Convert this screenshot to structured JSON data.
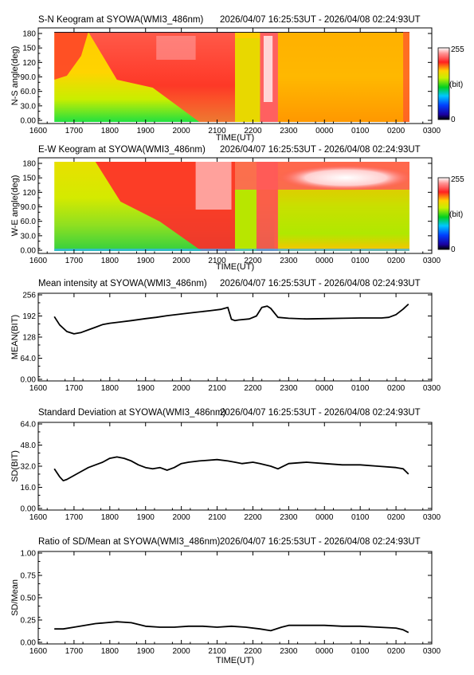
{
  "chart_data": [
    {
      "type": "heatmap",
      "title": "S-N Keogram at SYOWA(WMI3_486nm)",
      "time_range": "2026/04/07 16:25:53UT - 2026/04/08 02:24:93UT",
      "xlabel": "TIME(UT)",
      "ylabel": "N-S angle(deg)",
      "x_ticks": [
        "1600",
        "1700",
        "1800",
        "1900",
        "2000",
        "2100",
        "2200",
        "2300",
        "0000",
        "0100",
        "0200",
        "0300"
      ],
      "y_ticks": [
        "0.00",
        "30.0",
        "60.0",
        "90.0",
        "120",
        "150",
        "180"
      ],
      "ylim": [
        0,
        180
      ],
      "colorbar": {
        "max_label": "255",
        "unit_label": "(bit)",
        "min_label": "0"
      }
    },
    {
      "type": "heatmap",
      "title": "E-W Keogram at SYOWA(WMI3_486nm)",
      "time_range": "2026/04/07 16:25:53UT - 2026/04/08 02:24:93UT",
      "xlabel": "TIME(UT)",
      "ylabel": "W-E angle(deg)",
      "x_ticks": [
        "1600",
        "1700",
        "1800",
        "1900",
        "2000",
        "2100",
        "2200",
        "2300",
        "0000",
        "0100",
        "0200",
        "0300"
      ],
      "y_ticks": [
        "0.00",
        "30.0",
        "60.0",
        "90.0",
        "120",
        "150",
        "180"
      ],
      "ylim": [
        0,
        180
      ],
      "colorbar": {
        "max_label": "255",
        "unit_label": "(bit)",
        "min_label": "0"
      }
    },
    {
      "type": "line",
      "title": "Mean intensity at SYOWA(WMI3_486nm)",
      "time_range": "2026/04/07 16:25:53UT - 2026/04/08 02:24:93UT",
      "xlabel": "",
      "ylabel": "MEAN(BIT)",
      "x_ticks": [
        "1600",
        "1700",
        "1800",
        "1900",
        "2000",
        "2100",
        "2200",
        "2300",
        "0000",
        "0100",
        "0200",
        "0300"
      ],
      "y_ticks": [
        "0.00",
        "64.0",
        "128",
        "192",
        "256"
      ],
      "ylim": [
        0,
        256
      ],
      "x_hours": [
        16.45,
        16.6,
        16.8,
        17.0,
        17.2,
        17.4,
        17.6,
        17.8,
        18.0,
        18.3,
        18.6,
        19.0,
        19.3,
        19.6,
        20.0,
        20.4,
        20.8,
        21.1,
        21.3,
        21.4,
        21.5,
        21.6,
        21.9,
        22.1,
        22.25,
        22.4,
        22.5,
        22.7,
        23.0,
        23.5,
        24.0,
        24.5,
        25.0,
        25.3,
        25.6,
        25.8,
        26.0,
        26.2,
        26.35
      ],
      "values": [
        190,
        165,
        145,
        138,
        142,
        150,
        158,
        166,
        170,
        174,
        178,
        184,
        188,
        193,
        198,
        203,
        208,
        212,
        218,
        182,
        178,
        180,
        183,
        192,
        218,
        222,
        215,
        188,
        185,
        183,
        184,
        185,
        186,
        186,
        186,
        188,
        196,
        213,
        228
      ]
    },
    {
      "type": "line",
      "title": "Standard Deviation at SYOWA(WMI3_486nm)",
      "time_range": "2026/04/07 16:25:53UT - 2026/04/08 02:24:93UT",
      "xlabel": "",
      "ylabel": "SD(BIT)",
      "x_ticks": [
        "1600",
        "1700",
        "1800",
        "1900",
        "2000",
        "2100",
        "2200",
        "2300",
        "0000",
        "0100",
        "0200",
        "0300"
      ],
      "y_ticks": [
        "0.00",
        "16.0",
        "32.0",
        "48.0",
        "64.0"
      ],
      "ylim": [
        0,
        64
      ],
      "x_hours": [
        16.45,
        16.6,
        16.7,
        16.8,
        17.0,
        17.2,
        17.4,
        17.6,
        17.8,
        18.0,
        18.2,
        18.4,
        18.6,
        18.8,
        19.0,
        19.2,
        19.4,
        19.6,
        19.8,
        20.0,
        20.2,
        20.5,
        21.0,
        21.3,
        21.5,
        21.7,
        22.0,
        22.2,
        22.5,
        22.7,
        23.0,
        23.5,
        24.0,
        24.5,
        25.0,
        25.5,
        26.0,
        26.2,
        26.35
      ],
      "values": [
        30,
        24,
        21,
        22,
        25,
        28,
        31,
        33,
        35,
        38,
        39,
        38,
        36,
        33,
        31,
        30,
        31,
        29,
        31,
        34,
        35,
        36,
        37,
        36,
        35,
        34,
        35,
        34,
        32,
        30,
        34,
        35,
        34,
        33,
        33,
        32,
        31,
        30,
        26
      ]
    },
    {
      "type": "line",
      "title": "Ratio of SD/Mean at SYOWA(WMI3_486nm)",
      "time_range": "2026/04/07 16:25:53UT - 2026/04/08 02:24:93UT",
      "xlabel": "TIME(UT)",
      "ylabel": "SD/Mean",
      "x_ticks": [
        "1600",
        "1700",
        "1800",
        "1900",
        "2000",
        "2100",
        "2200",
        "2300",
        "0000",
        "0100",
        "0200",
        "0300"
      ],
      "y_ticks": [
        "0.00",
        "0.25",
        "0.50",
        "0.75",
        "1.00"
      ],
      "ylim": [
        0,
        1.0
      ],
      "x_hours": [
        16.45,
        16.7,
        17.0,
        17.3,
        17.6,
        17.9,
        18.2,
        18.6,
        19.0,
        19.4,
        19.8,
        20.2,
        20.6,
        21.0,
        21.4,
        21.8,
        22.2,
        22.5,
        22.8,
        23.0,
        23.5,
        24.0,
        24.5,
        25.0,
        25.5,
        26.0,
        26.2,
        26.35
      ],
      "values": [
        0.15,
        0.15,
        0.17,
        0.19,
        0.21,
        0.22,
        0.23,
        0.22,
        0.18,
        0.17,
        0.17,
        0.18,
        0.18,
        0.17,
        0.18,
        0.17,
        0.15,
        0.13,
        0.17,
        0.19,
        0.19,
        0.19,
        0.18,
        0.18,
        0.17,
        0.16,
        0.14,
        0.11
      ]
    }
  ]
}
